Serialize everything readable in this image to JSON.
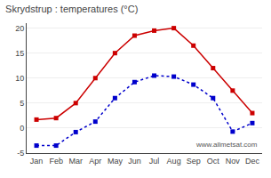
{
  "chart_data": {
    "type": "line",
    "title": "Skrydstrup : temperatures (°C)",
    "categories": [
      "Jan",
      "Feb",
      "Mar",
      "Apr",
      "May",
      "Jun",
      "Jul",
      "Aug",
      "Sep",
      "Oct",
      "Nov",
      "Dec"
    ],
    "series": [
      {
        "color": "#cc0000",
        "line_style": "solid",
        "marker": "square",
        "values": [
          1.7,
          2.0,
          5.0,
          10.0,
          15.0,
          18.5,
          19.5,
          20.0,
          16.5,
          12.0,
          7.5,
          3.0
        ]
      },
      {
        "color": "#0000cc",
        "line_style": "dotted",
        "marker": "square",
        "values": [
          -3.5,
          -3.5,
          -0.8,
          1.3,
          6.0,
          9.2,
          10.5,
          10.3,
          8.7,
          6.0,
          -0.7,
          1.0
        ]
      }
    ],
    "ylim": [
      -5,
      21
    ],
    "yticks": [
      -5,
      0,
      5,
      10,
      15,
      20
    ],
    "grid": true,
    "annotations": [
      "www.allmetsat.com"
    ]
  }
}
